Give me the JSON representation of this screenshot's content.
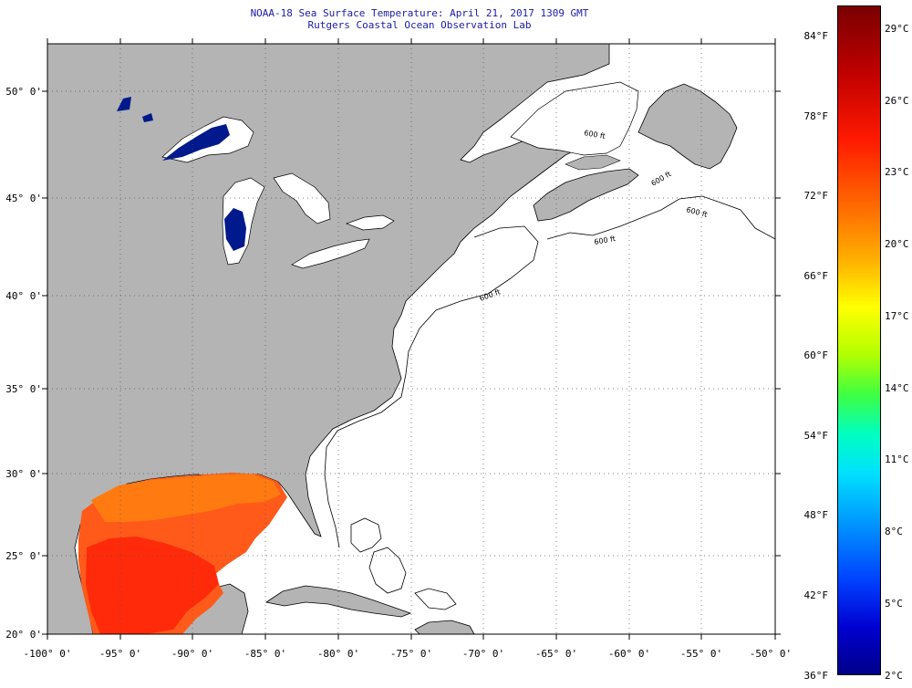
{
  "title": {
    "line1": "NOAA-18 Sea Surface Temperature:  April 21, 2017 1309 GMT",
    "line2": "Rutgers Coastal Ocean Observation Lab"
  },
  "map": {
    "lat_labels": [
      "50° 0'",
      "45° 0'",
      "40° 0'",
      "35° 0'",
      "30° 0'",
      "25° 0'",
      "20° 0'"
    ],
    "lon_labels": [
      "-100° 0'",
      "-95° 0'",
      "-90° 0'",
      "-85° 0'",
      "-80° 0'",
      "-75° 0'",
      "-70° 0'",
      "-65° 0'",
      "-60° 0'",
      "-55° 0'",
      "-50° 0'"
    ],
    "land_color": "#b4b4b4",
    "sea_color": "#ffffff",
    "contour_labels": [
      "600 ft",
      "600 ft",
      "600 ft",
      "600 ft",
      "600 ft"
    ]
  },
  "colorbar": {
    "fahrenheit": [
      "84°F",
      "78°F",
      "72°F",
      "66°F",
      "60°F",
      "54°F",
      "48°F",
      "42°F",
      "36°F"
    ],
    "celsius": [
      "29°C",
      "26°C",
      "23°C",
      "20°C",
      "17°C",
      "14°C",
      "11°C",
      "8°C",
      "5°C",
      "2°C"
    ]
  }
}
